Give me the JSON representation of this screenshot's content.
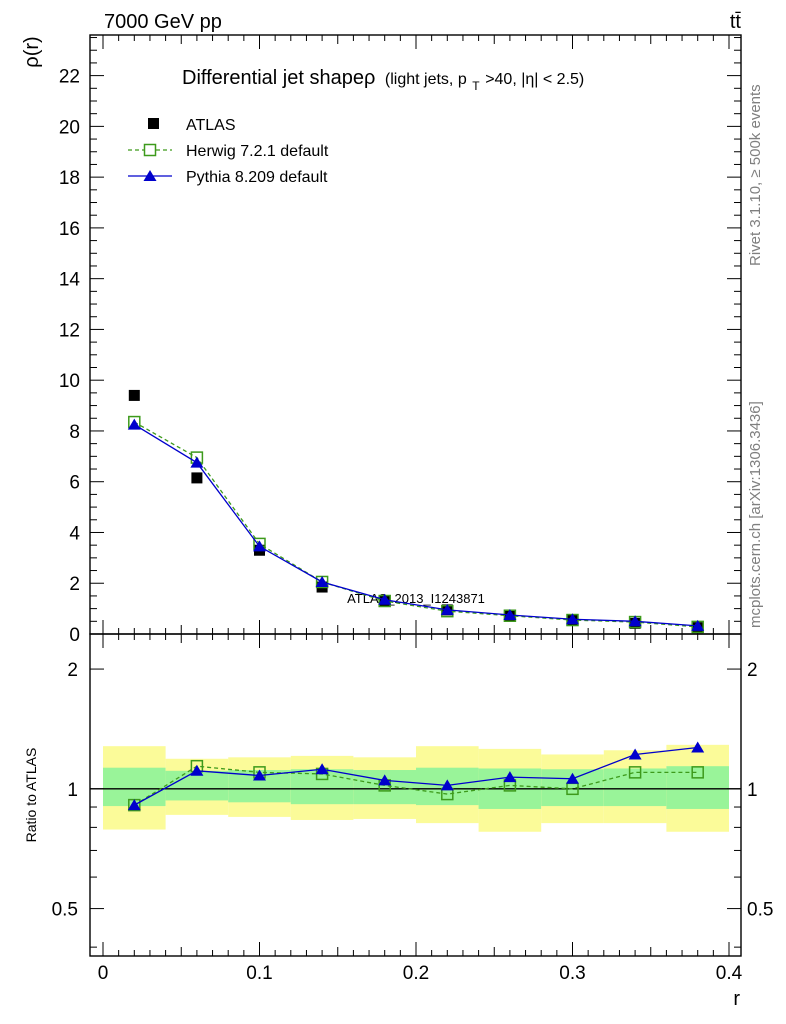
{
  "header": {
    "energy_label": "7000 GeV pp",
    "process_label": "tt̄"
  },
  "side_labels": {
    "rivet": "Rivet 3.1.10, ≥ 500k events",
    "source": "mcplots.cern.ch [arXiv:1306.3436]"
  },
  "chart_data": [
    {
      "type": "scatter",
      "panel": "main",
      "title": "Differential jet shapeρ (light jets, p_T>40, |η| < 2.5)",
      "title_main": "Differential jet shapeρ",
      "title_paren_pre": "(light jets, p",
      "title_paren_sub": "T",
      "title_paren_post": ">40, |η| < 2.5)",
      "ylabel": "ρ(r)",
      "xlim": [
        -0.008,
        0.4
      ],
      "ylim": [
        0,
        23.6
      ],
      "y_ticks": [
        "0",
        "2",
        "4",
        "6",
        "8",
        "10",
        "12",
        "14",
        "16",
        "18",
        "20",
        "22"
      ],
      "x": [
        0.02,
        0.06,
        0.1,
        0.14,
        0.18,
        0.22,
        0.26,
        0.3,
        0.34,
        0.38
      ],
      "watermark": "ATLAS_2013_I1243871",
      "legend_placement": "top-left",
      "series": [
        {
          "name": "ATLAS",
          "marker": "filled-square",
          "color": "#000000",
          "values": [
            9.4,
            6.15,
            3.3,
            1.85,
            1.3,
            0.95,
            0.7,
            0.55,
            0.42,
            0.25
          ]
        },
        {
          "name": "Herwig 7.2.1 default",
          "marker": "open-square",
          "line": "dashed",
          "color": "#3d9a1b",
          "values": [
            8.35,
            6.95,
            3.55,
            2.05,
            1.3,
            0.9,
            0.72,
            0.55,
            0.47,
            0.28
          ]
        },
        {
          "name": "Pythia 8.209 default",
          "marker": "filled-triangle",
          "line": "solid",
          "color": "#0000cc",
          "values": [
            8.25,
            6.75,
            3.45,
            2.05,
            1.35,
            0.95,
            0.75,
            0.58,
            0.5,
            0.32
          ]
        }
      ]
    },
    {
      "type": "scatter",
      "panel": "ratio",
      "ylabel": "Ratio to ATLAS",
      "xlabel": "r",
      "y_scale": "log",
      "ylim": [
        0.38,
        2.45
      ],
      "y_ticks": [
        "0.5",
        "1",
        "2"
      ],
      "x_ticks": [
        "0",
        "0.1",
        "0.2",
        "0.3",
        "0.4"
      ],
      "x_edges": [
        0.0,
        0.04,
        0.08,
        0.12,
        0.16,
        0.2,
        0.24,
        0.28,
        0.32,
        0.36,
        0.4
      ],
      "band_inner": [
        [
          0.905,
          1.13
        ],
        [
          0.935,
          1.11
        ],
        [
          0.925,
          1.115
        ],
        [
          0.915,
          1.12
        ],
        [
          0.915,
          1.115
        ],
        [
          0.91,
          1.13
        ],
        [
          0.89,
          1.125
        ],
        [
          0.905,
          1.12
        ],
        [
          0.905,
          1.125
        ],
        [
          0.89,
          1.14
        ]
      ],
      "band_outer": [
        [
          0.79,
          1.28
        ],
        [
          0.86,
          1.19
        ],
        [
          0.85,
          1.2
        ],
        [
          0.835,
          1.21
        ],
        [
          0.84,
          1.2
        ],
        [
          0.82,
          1.28
        ],
        [
          0.78,
          1.26
        ],
        [
          0.82,
          1.22
        ],
        [
          0.82,
          1.25
        ],
        [
          0.78,
          1.29
        ]
      ],
      "band_colors": {
        "inner": "#99f499",
        "outer": "#fbfb99"
      },
      "series": [
        {
          "name": "Herwig 7.2.1 default",
          "color": "#3d9a1b",
          "values": [
            0.91,
            1.14,
            1.1,
            1.09,
            1.02,
            0.97,
            1.02,
            1.0,
            1.1,
            1.1
          ]
        },
        {
          "name": "Pythia 8.209 default",
          "color": "#0000cc",
          "values": [
            0.91,
            1.11,
            1.08,
            1.12,
            1.05,
            1.02,
            1.07,
            1.06,
            1.22,
            1.27
          ]
        }
      ]
    }
  ]
}
